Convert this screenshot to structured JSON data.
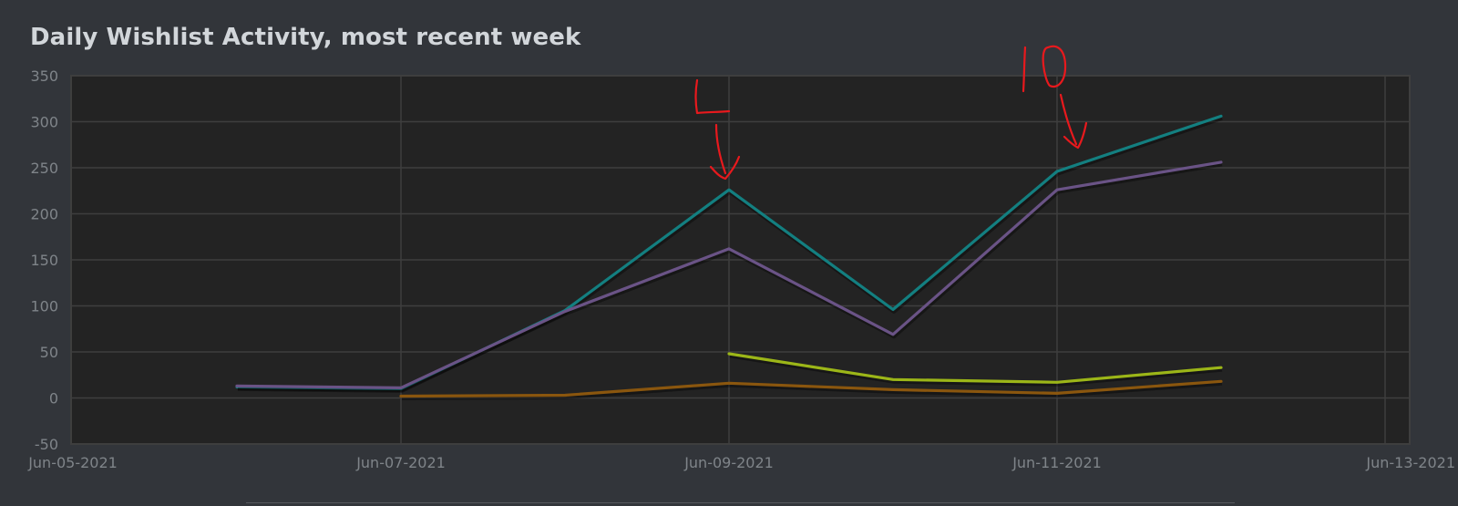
{
  "title": "Daily Wishlist Activity, most recent week",
  "colors": {
    "background": "#32353a",
    "plot_background": "#232323",
    "grid": "#3e3e3e",
    "tick_text": "#7f8489",
    "annotation": "#e8191d"
  },
  "annotations": [
    {
      "text": "L",
      "style": "handwritten-red",
      "points_to": "Jun-09-2021"
    },
    {
      "text": "10",
      "style": "handwritten-red",
      "points_to": "Jun-11-2021"
    }
  ],
  "chart_data": {
    "type": "line",
    "title": "Daily Wishlist Activity, most recent week",
    "xlabel": "",
    "ylabel": "",
    "ylim": [
      -50,
      350
    ],
    "yticks": [
      350,
      300,
      250,
      200,
      150,
      100,
      50,
      0,
      -50
    ],
    "xlim": [
      "Jun-05-2021",
      "Jun-13-2021"
    ],
    "xticks": [
      "Jun-05-2021",
      "Jun-07-2021",
      "Jun-09-2021",
      "Jun-11-2021",
      "Jun-13-2021"
    ],
    "grid": true,
    "legend": "none",
    "series": [
      {
        "color": "#137f80",
        "points": [
          {
            "x": "Jun-06-2021",
            "y": 12
          },
          {
            "x": "Jun-07-2021",
            "y": 10
          },
          {
            "x": "Jun-08-2021",
            "y": 95
          },
          {
            "x": "Jun-09-2021",
            "y": 226
          },
          {
            "x": "Jun-10-2021",
            "y": 96
          },
          {
            "x": "Jun-11-2021",
            "y": 246
          },
          {
            "x": "Jun-12-2021",
            "y": 306
          }
        ]
      },
      {
        "color": "#6a5386",
        "points": [
          {
            "x": "Jun-06-2021",
            "y": 13
          },
          {
            "x": "Jun-07-2021",
            "y": 11
          },
          {
            "x": "Jun-08-2021",
            "y": 94
          },
          {
            "x": "Jun-09-2021",
            "y": 162
          },
          {
            "x": "Jun-10-2021",
            "y": 69
          },
          {
            "x": "Jun-11-2021",
            "y": 226
          },
          {
            "x": "Jun-12-2021",
            "y": 256
          }
        ]
      },
      {
        "color": "#9cb618",
        "points": [
          {
            "x": "Jun-09-2021",
            "y": 48
          },
          {
            "x": "Jun-10-2021",
            "y": 20
          },
          {
            "x": "Jun-11-2021",
            "y": 17
          },
          {
            "x": "Jun-12-2021",
            "y": 33
          }
        ]
      },
      {
        "color": "#8a560e",
        "points": [
          {
            "x": "Jun-07-2021",
            "y": 2
          },
          {
            "x": "Jun-08-2021",
            "y": 3
          },
          {
            "x": "Jun-09-2021",
            "y": 16
          },
          {
            "x": "Jun-10-2021",
            "y": 9
          },
          {
            "x": "Jun-11-2021",
            "y": 5
          },
          {
            "x": "Jun-12-2021",
            "y": 18
          }
        ]
      }
    ]
  }
}
